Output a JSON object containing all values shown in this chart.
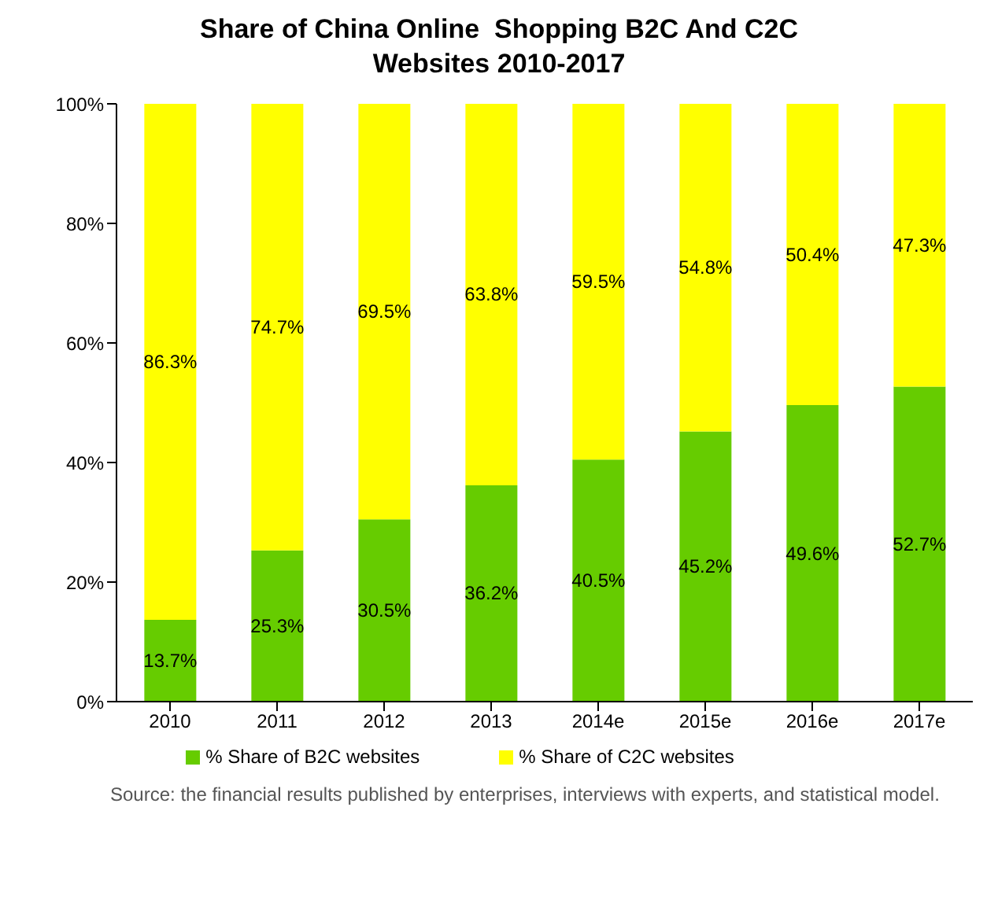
{
  "chart_data": {
    "type": "bar",
    "title": "Share of China Online  Shopping B2C And C2C Websites 2010-2017",
    "categories": [
      "2010",
      "2011",
      "2012",
      "2013",
      "2014e",
      "2015e",
      "2016e",
      "2017e"
    ],
    "stacked": true,
    "ylim": [
      0,
      100
    ],
    "yticks": [
      {
        "value": 0,
        "label": "0%"
      },
      {
        "value": 20,
        "label": "20%"
      },
      {
        "value": 40,
        "label": "40%"
      },
      {
        "value": 60,
        "label": "60%"
      },
      {
        "value": 80,
        "label": "80%"
      },
      {
        "value": 100,
        "label": "100%"
      }
    ],
    "legend": "bottom",
    "series": [
      {
        "name": "% Share of B2C websites",
        "color": "#66cc00",
        "values": [
          13.7,
          25.3,
          30.5,
          36.2,
          40.5,
          45.2,
          49.6,
          52.7
        ],
        "value_labels": [
          "13.7%",
          "25.3%",
          "30.5%",
          "36.2%",
          "40.5%",
          "45.2%",
          "49.6%",
          "52.7%"
        ]
      },
      {
        "name": "% Share of C2C websites",
        "color": "#ffff00",
        "values": [
          86.3,
          74.7,
          69.5,
          63.8,
          59.5,
          54.8,
          50.4,
          47.3
        ],
        "value_labels": [
          "86.3%",
          "74.7%",
          "69.5%",
          "63.8%",
          "59.5%",
          "54.8%",
          "50.4%",
          "47.3%"
        ]
      }
    ],
    "annotations": [
      "Source: the financial results published by enterprises, interviews with experts, and statistical model."
    ]
  }
}
